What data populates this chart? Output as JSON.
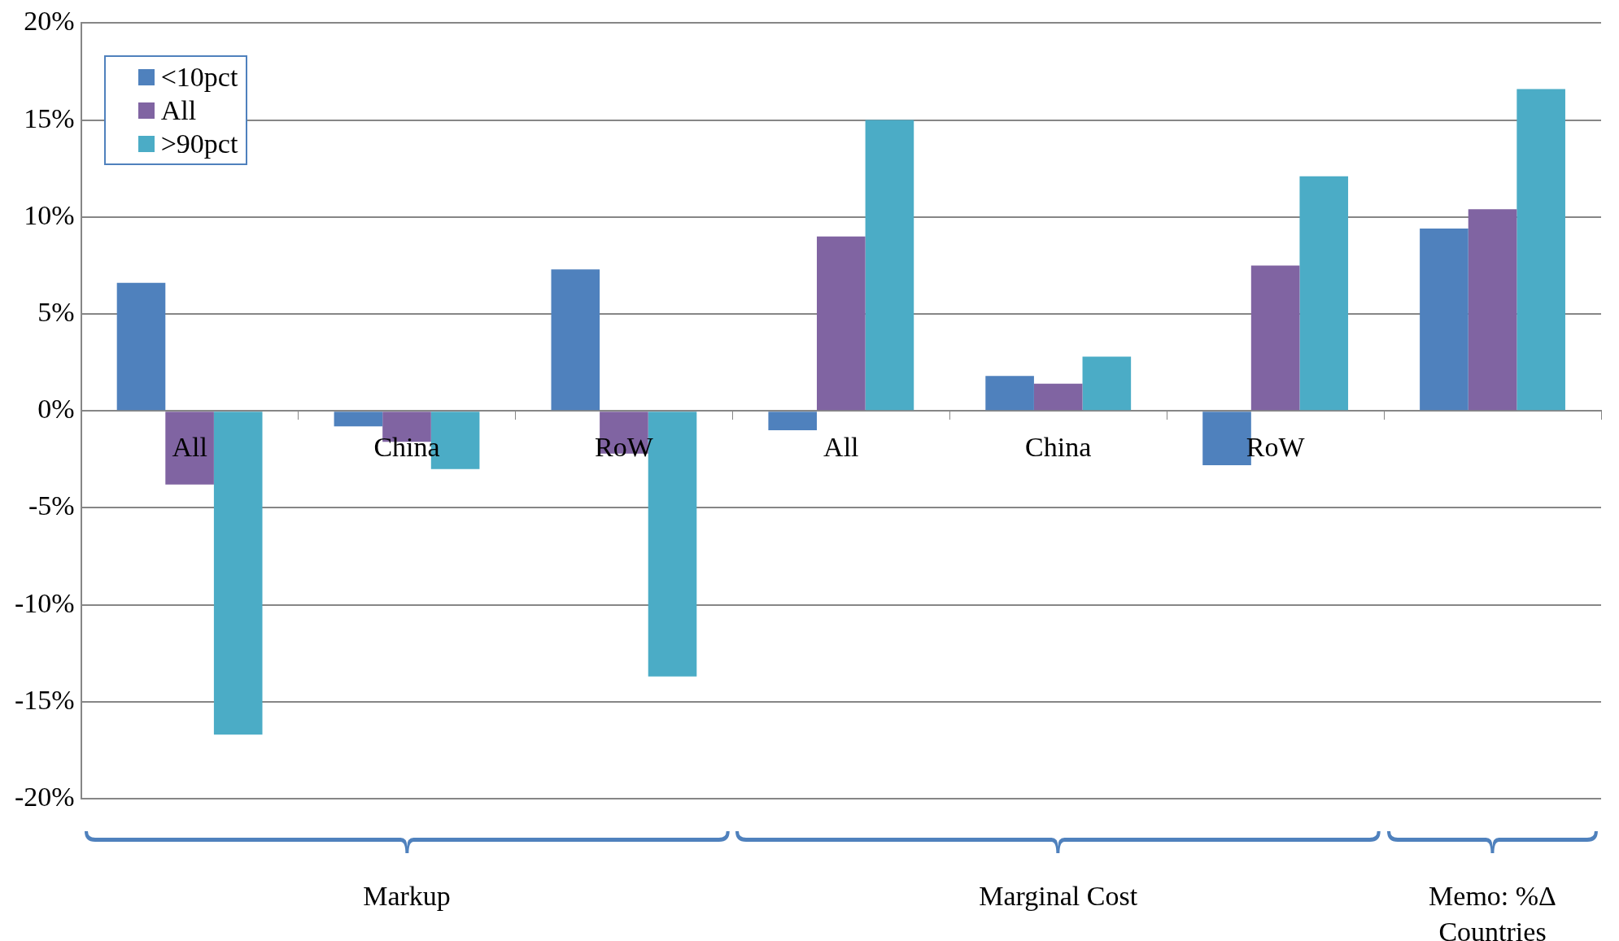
{
  "chart_data": {
    "type": "bar",
    "categories": [
      "All",
      "China",
      "RoW",
      "All",
      "China",
      "RoW",
      null
    ],
    "series": [
      {
        "name": "<10pct",
        "color": "#4f81bd",
        "values": [
          6.6,
          -0.8,
          7.3,
          -1.0,
          1.8,
          -2.8,
          9.4
        ]
      },
      {
        "name": "All",
        "color": "#8064a2",
        "values": [
          -3.8,
          -1.6,
          -2.2,
          9.0,
          1.4,
          7.5,
          10.4
        ]
      },
      {
        "name": ">90pct",
        "color": "#4bacc6",
        "values": [
          -16.7,
          -3.0,
          -13.7,
          15.0,
          2.8,
          12.1,
          16.6
        ]
      }
    ],
    "ylim": [
      -20,
      20
    ],
    "yticks": [
      {
        "value": -20,
        "label": "-20%"
      },
      {
        "value": -15,
        "label": "-15%"
      },
      {
        "value": -10,
        "label": "-10%"
      },
      {
        "value": -5,
        "label": "-5%"
      },
      {
        "value": 0,
        "label": "0%"
      },
      {
        "value": 5,
        "label": "5%"
      },
      {
        "value": 10,
        "label": "10%"
      },
      {
        "value": 15,
        "label": "15%"
      },
      {
        "value": 20,
        "label": "20%"
      }
    ],
    "grid": "y",
    "legend": "top left",
    "annotations": [
      "Markup",
      "Marginal Cost",
      "Memo: %Δ Countries"
    ]
  }
}
